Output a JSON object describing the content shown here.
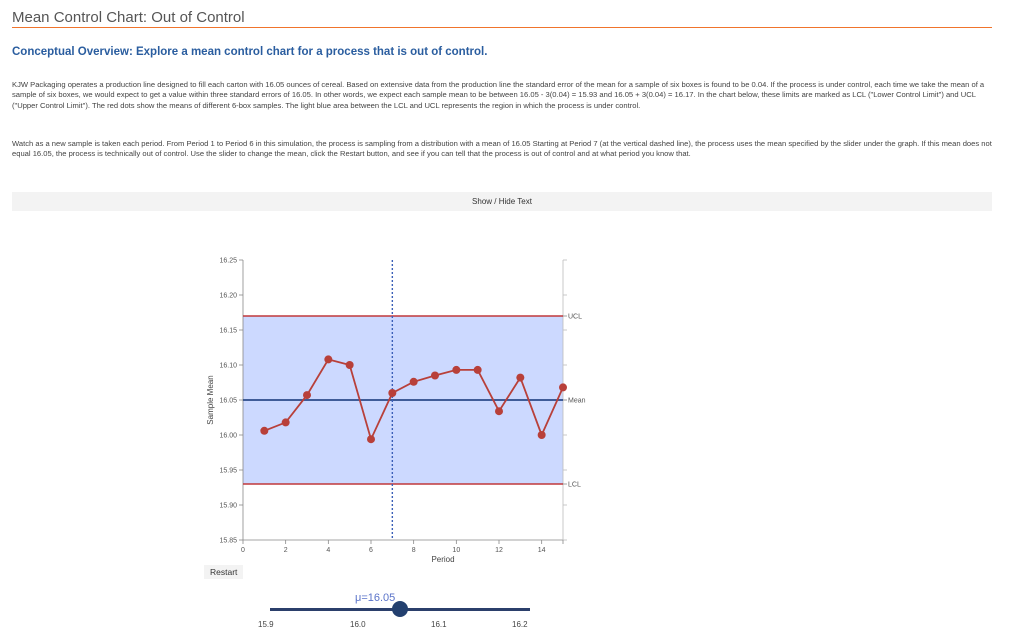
{
  "page": {
    "title": "Mean Control Chart: Out of Control",
    "subtitle": "Conceptual Overview: Explore a mean control chart for a process that is out of control.",
    "paragraph1": "KJW Packaging operates a production line designed to fill each carton with 16.05 ounces of cereal. Based on extensive data from the production line the standard error of the mean for a sample of six boxes is found to be 0.04. If the process is under control, each time we take the mean of a sample of six boxes, we would expect to get a value within three standard errors of 16.05. In other words, we expect each sample mean to be between 16.05 - 3(0.04) = 15.93 and 16.05 + 3(0.04) = 16.17. In the chart below, these limits are marked as LCL (\"Lower Control Limit\") and UCL (\"Upper Control Limit\"). The red dots show the means of different 6-box samples. The light blue area between the LCL and UCL represents the region in which the process is under control.",
    "paragraph2": "Watch as a new sample is taken each period. From Period 1 to Period 6 in this simulation, the process is sampling from a distribution with a mean of 16.05 Starting at Period 7 (at the vertical dashed line), the process uses the mean specified by the slider under the graph. If this mean does not equal 16.05, the process is technically out of control. Use the slider to change the mean, click the Restart button, and see if you can tell that the process is out of control and at what period you know that.",
    "toggle_label": "Show / Hide Text"
  },
  "chart_data": {
    "type": "line",
    "xlabel": "Period",
    "ylabel": "Sample Mean",
    "xlim": [
      0,
      15
    ],
    "ylim": [
      15.85,
      16.25
    ],
    "x_ticks": [
      0,
      2,
      4,
      6,
      8,
      10,
      12,
      14
    ],
    "y_ticks": [
      "15.85",
      "15.90",
      "15.95",
      "16.00",
      "16.05",
      "16.10",
      "16.15",
      "16.20",
      "16.25"
    ],
    "ucl": 16.17,
    "mean": 16.05,
    "lcl": 15.93,
    "ucl_label": "UCL",
    "mean_label": "Mean",
    "lcl_label": "LCL",
    "change_period": 7,
    "series": [
      {
        "x": [
          1,
          2,
          3,
          4,
          5,
          6,
          7,
          8,
          9,
          10,
          11,
          12,
          13,
          14,
          15
        ],
        "values": [
          16.006,
          16.018,
          16.057,
          16.108,
          16.1,
          15.994,
          16.06,
          16.076,
          16.085,
          16.093,
          16.093,
          16.034,
          16.082,
          16.0,
          16.068
        ]
      }
    ],
    "colors": {
      "band": "#ccd9ff",
      "limits": "#c0393b",
      "mean_line": "#2b4a8a",
      "points": "#b8403a",
      "divider": "#3b5fb8"
    }
  },
  "controls": {
    "restart_label": "Restart",
    "mu_label": "μ=16.05",
    "mu_value": 16.05,
    "slider_min": 15.85,
    "slider_max": 16.25,
    "slider_ticks": [
      "15.9",
      "16.0",
      "16.1",
      "16.2"
    ]
  }
}
